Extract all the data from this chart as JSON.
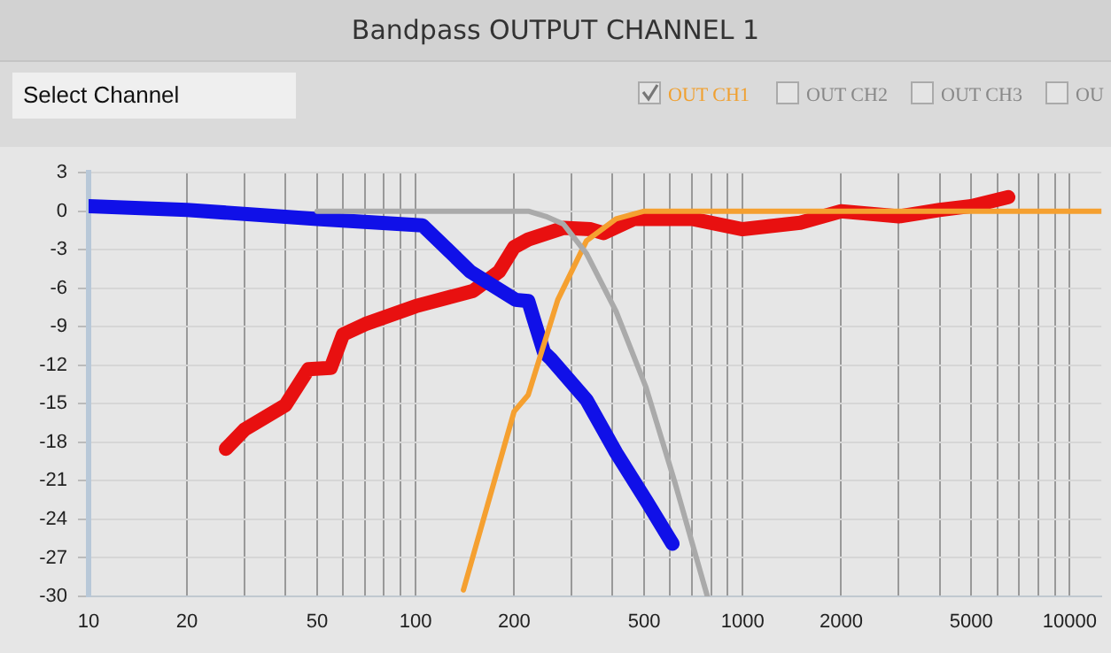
{
  "chart_data": {
    "type": "line",
    "title": "Bandpass OUTPUT CHANNEL 1",
    "annotations": [
      "Select Channel",
      "OUT CH1",
      "OUT CH2",
      "OUT CH3",
      "OU"
    ],
    "log": "x",
    "grid": true,
    "legend": false,
    "marker": "none",
    "line_style": "solid",
    "xlim": [
      10,
      12500
    ],
    "ylim": [
      -30,
      3
    ],
    "xticks": [
      10,
      20,
      {
        "value": 30,
        "label": null
      },
      {
        "value": 40,
        "label": null
      },
      50,
      {
        "value": 60,
        "label": null
      },
      {
        "value": 70,
        "label": null
      },
      {
        "value": 80,
        "label": null
      },
      {
        "value": 90,
        "label": null
      },
      100,
      200,
      {
        "value": 300,
        "label": null
      },
      {
        "value": 400,
        "label": null
      },
      500,
      {
        "value": 600,
        "label": null
      },
      {
        "value": 700,
        "label": null
      },
      {
        "value": 800,
        "label": null
      },
      {
        "value": 900,
        "label": null
      },
      1000,
      2000,
      {
        "value": 3000,
        "label": null
      },
      {
        "value": 4000,
        "label": null
      },
      5000,
      {
        "value": 6000,
        "label": null
      },
      {
        "value": 7000,
        "label": null
      },
      {
        "value": 8000,
        "label": null
      },
      {
        "value": 9000,
        "label": null
      },
      10000
    ],
    "yticks": [
      3,
      0,
      -3,
      -6,
      -9,
      -12,
      -15,
      -18,
      -21,
      -24,
      -27,
      -30
    ],
    "series": [
      {
        "color": "#aaaaaa",
        "x": [
          50,
          100,
          150,
          200,
          221,
          250,
          283,
          333,
          410,
          506,
          620,
          780
        ],
        "values": [
          0,
          0,
          0,
          0,
          0,
          -0.4,
          -1,
          -3.3,
          -7.8,
          -13.7,
          -21.1,
          -30
        ]
      },
      {
        "color": "#f5a030",
        "x": [
          140,
          200,
          221,
          272,
          333,
          410,
          500,
          1000,
          12500
        ],
        "values": [
          -29.5,
          -15.6,
          -14.3,
          -6.9,
          -2.3,
          -0.6,
          0,
          0,
          0
        ]
      },
      {
        "color": "#1010e8",
        "x": [
          10,
          20,
          50,
          105,
          147,
          202,
          221,
          229,
          247,
          259,
          333,
          410,
          506,
          610
        ],
        "values": [
          0.4,
          0.1,
          -0.6,
          -1.1,
          -4.7,
          -6.9,
          -7,
          -8.3,
          -11,
          -11.5,
          -14.7,
          -18.8,
          -22.5,
          -25.9
        ]
      },
      {
        "color": "#e81010",
        "x": [
          26.3,
          30,
          40,
          47,
          55,
          60,
          70,
          100,
          150,
          180,
          200,
          221,
          283,
          343,
          375,
          465,
          700,
          1000,
          1500,
          2000,
          3000,
          4000,
          5000,
          6490
        ],
        "values": [
          -18.5,
          -17,
          -15.1,
          -12.3,
          -12.2,
          -9.6,
          -8.8,
          -7.4,
          -6.2,
          -4.7,
          -2.8,
          -2.2,
          -1.3,
          -1.4,
          -1.7,
          -0.6,
          -0.6,
          -1.4,
          -0.9,
          0,
          -0.4,
          0.1,
          0.4,
          1.1
        ]
      }
    ]
  }
}
